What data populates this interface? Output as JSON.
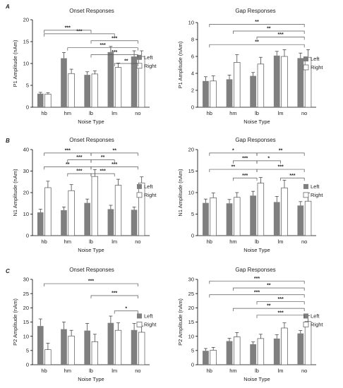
{
  "panel_letters": [
    "A",
    "B",
    "C"
  ],
  "colors": {
    "left_bar": "#7f7f7f",
    "right_bar": "#ffffff",
    "axis": "#000000",
    "bracket": "#555555"
  },
  "chart_data": [
    {
      "type": "bar",
      "title": "Onset Responses",
      "xlabel": "Noise Type",
      "ylabel": "P1 Amplitude (nAm)",
      "categories": [
        "hb",
        "hm",
        "lb",
        "lm",
        "no"
      ],
      "ylim": [
        0,
        20
      ],
      "yticks": [
        0,
        5,
        10,
        15,
        20
      ],
      "legend_position": "right",
      "series": [
        {
          "name": "Left",
          "values": [
            3.1,
            11.2,
            7.4,
            12.6,
            11.6
          ],
          "errors": [
            0.3,
            1.3,
            0.7,
            1.3,
            1.3
          ]
        },
        {
          "name": "Right",
          "values": [
            3.0,
            7.7,
            7.6,
            9.1,
            11.6
          ],
          "errors": [
            0.3,
            1.0,
            0.7,
            1.0,
            1.3
          ]
        }
      ],
      "significance": [
        {
          "from": "hb",
          "to": "lb",
          "label": "***"
        },
        {
          "from": "hb",
          "to": "lm",
          "label": "***"
        },
        {
          "from": "lb",
          "to": "no",
          "label": "***"
        },
        {
          "from": "hm",
          "to": "no",
          "label": "***"
        },
        {
          "from": "lb",
          "to": "no",
          "label": "***"
        },
        {
          "from": "lm",
          "to": "no",
          "label": "**"
        }
      ]
    },
    {
      "type": "bar",
      "title": "Gap Responses",
      "xlabel": "Noise Type",
      "ylabel": "P1 Amplitude (nAm)",
      "categories": [
        "hb",
        "hm",
        "lb",
        "lm",
        "no"
      ],
      "ylim": [
        0,
        10
      ],
      "yticks": [
        0,
        2,
        4,
        6,
        8,
        10
      ],
      "legend_position": "right",
      "series": [
        {
          "name": "Left",
          "values": [
            3.1,
            3.3,
            3.7,
            6.1,
            5.8
          ],
          "errors": [
            0.5,
            0.5,
            0.4,
            0.5,
            0.6
          ]
        },
        {
          "name": "Right",
          "values": [
            3.1,
            5.3,
            5.1,
            6.0,
            5.9
          ],
          "errors": [
            0.6,
            0.9,
            0.8,
            0.8,
            0.9
          ]
        }
      ],
      "significance": [
        {
          "from": "hb",
          "to": "no",
          "label": "**"
        },
        {
          "from": "hm",
          "to": "no",
          "label": "**"
        },
        {
          "from": "lb",
          "to": "no",
          "label": "***"
        },
        {
          "from": "hb",
          "to": "no",
          "label": "**"
        }
      ]
    },
    {
      "type": "bar",
      "title": "Onset Responses",
      "xlabel": "Noise Type",
      "ylabel": "N1 Amplitude (nAm)",
      "categories": [
        "hb",
        "hm",
        "lb",
        "lm",
        "no"
      ],
      "ylim": [
        0,
        40
      ],
      "yticks": [
        0,
        10,
        20,
        30,
        40
      ],
      "legend_position": "right",
      "series": [
        {
          "name": "Left",
          "values": [
            10.8,
            11.8,
            15.2,
            12.3,
            12.0
          ],
          "errors": [
            1.5,
            1.5,
            1.8,
            1.8,
            1.3
          ]
        },
        {
          "name": "Right",
          "values": [
            22.3,
            20.9,
            27.5,
            23.4,
            24.5
          ],
          "errors": [
            3.0,
            2.8,
            3.2,
            2.8,
            2.8
          ]
        }
      ],
      "significance": [
        {
          "from": "hb",
          "to": "lb",
          "label": "***"
        },
        {
          "from": "lb",
          "to": "no",
          "label": "**"
        },
        {
          "from": "hm",
          "to": "lb",
          "label": "***"
        },
        {
          "from": "lb",
          "to": "lm",
          "label": "**"
        },
        {
          "from": "hb",
          "to": "lb",
          "label": "**"
        },
        {
          "from": "lb",
          "to": "no",
          "label": "***"
        },
        {
          "from": "hm",
          "to": "lb",
          "label": "***"
        },
        {
          "from": "lb",
          "to": "lm",
          "label": "***"
        }
      ]
    },
    {
      "type": "bar",
      "title": "Gap Responses",
      "xlabel": "Noise Type",
      "ylabel": "N1 Amplitude (nAm)",
      "categories": [
        "hb",
        "hm",
        "lb",
        "lm",
        "no"
      ],
      "ylim": [
        0,
        20
      ],
      "yticks": [
        0,
        5,
        10,
        15,
        20
      ],
      "legend_position": "right",
      "series": [
        {
          "name": "Left",
          "values": [
            7.6,
            7.5,
            9.3,
            7.8,
            7.0
          ],
          "errors": [
            0.9,
            0.9,
            1.0,
            1.3,
            0.9
          ]
        },
        {
          "name": "Right",
          "values": [
            8.8,
            8.9,
            12.2,
            11.1,
            8.0
          ],
          "errors": [
            1.1,
            1.1,
            1.3,
            1.8,
            1.9
          ]
        }
      ],
      "significance": [
        {
          "from": "hb",
          "to": "lb",
          "label": "*"
        },
        {
          "from": "lb",
          "to": "no",
          "label": "**"
        },
        {
          "from": "hm",
          "to": "lb",
          "label": "***"
        },
        {
          "from": "lb",
          "to": "lm",
          "label": "*"
        },
        {
          "from": "hb",
          "to": "lb",
          "label": "**"
        },
        {
          "from": "lb",
          "to": "no",
          "label": "***"
        },
        {
          "from": "hm",
          "to": "lb",
          "label": "***"
        },
        {
          "from": "lm",
          "to": "no",
          "label": "***"
        }
      ]
    },
    {
      "type": "bar",
      "title": "Onset Responses",
      "xlabel": "Noise Type",
      "ylabel": "P2 Amplitude (nAm)",
      "categories": [
        "hb",
        "hm",
        "lb",
        "lm",
        "no"
      ],
      "ylim": [
        0,
        30
      ],
      "yticks": [
        0,
        5,
        10,
        15,
        20,
        25,
        30
      ],
      "legend_position": "right",
      "series": [
        {
          "name": "Left",
          "values": [
            13.6,
            12.5,
            12.0,
            14.7,
            12.2
          ],
          "errors": [
            2.5,
            2.5,
            2.5,
            2.4,
            2.3
          ]
        },
        {
          "name": "Right",
          "values": [
            5.3,
            10.1,
            8.1,
            12.1,
            11.4
          ],
          "errors": [
            2.3,
            2.0,
            2.6,
            2.6,
            2.2
          ]
        }
      ],
      "significance": [
        {
          "from": "hb",
          "to": "no",
          "label": "***"
        },
        {
          "from": "lb",
          "to": "no",
          "label": "***"
        },
        {
          "from": "lm",
          "to": "no",
          "label": "*"
        }
      ]
    },
    {
      "type": "bar",
      "title": "Gap Responses",
      "xlabel": "Noise Type",
      "ylabel": "P2 Amplitude (nAm)",
      "categories": [
        "hb",
        "hm",
        "lb",
        "lm",
        "no"
      ],
      "ylim": [
        0,
        30
      ],
      "yticks": [
        0,
        5,
        10,
        15,
        20,
        25,
        30
      ],
      "legend_position": "right",
      "series": [
        {
          "name": "Left",
          "values": [
            4.9,
            8.3,
            7.2,
            9.2,
            11.0
          ],
          "errors": [
            0.8,
            1.0,
            0.8,
            1.3,
            1.0
          ]
        },
        {
          "name": "Right",
          "values": [
            5.1,
            9.8,
            9.2,
            12.9,
            15.2
          ],
          "errors": [
            1.0,
            1.5,
            1.5,
            1.8,
            2.0
          ]
        }
      ],
      "significance": [
        {
          "from": "hb",
          "to": "no",
          "label": "***"
        },
        {
          "from": "hm",
          "to": "no",
          "label": "**"
        },
        {
          "from": "hb",
          "to": "no",
          "label": "***"
        },
        {
          "from": "lb",
          "to": "no",
          "label": "***"
        },
        {
          "from": "hm",
          "to": "no",
          "label": "**"
        },
        {
          "from": "lb",
          "to": "no",
          "label": "***"
        }
      ]
    }
  ]
}
